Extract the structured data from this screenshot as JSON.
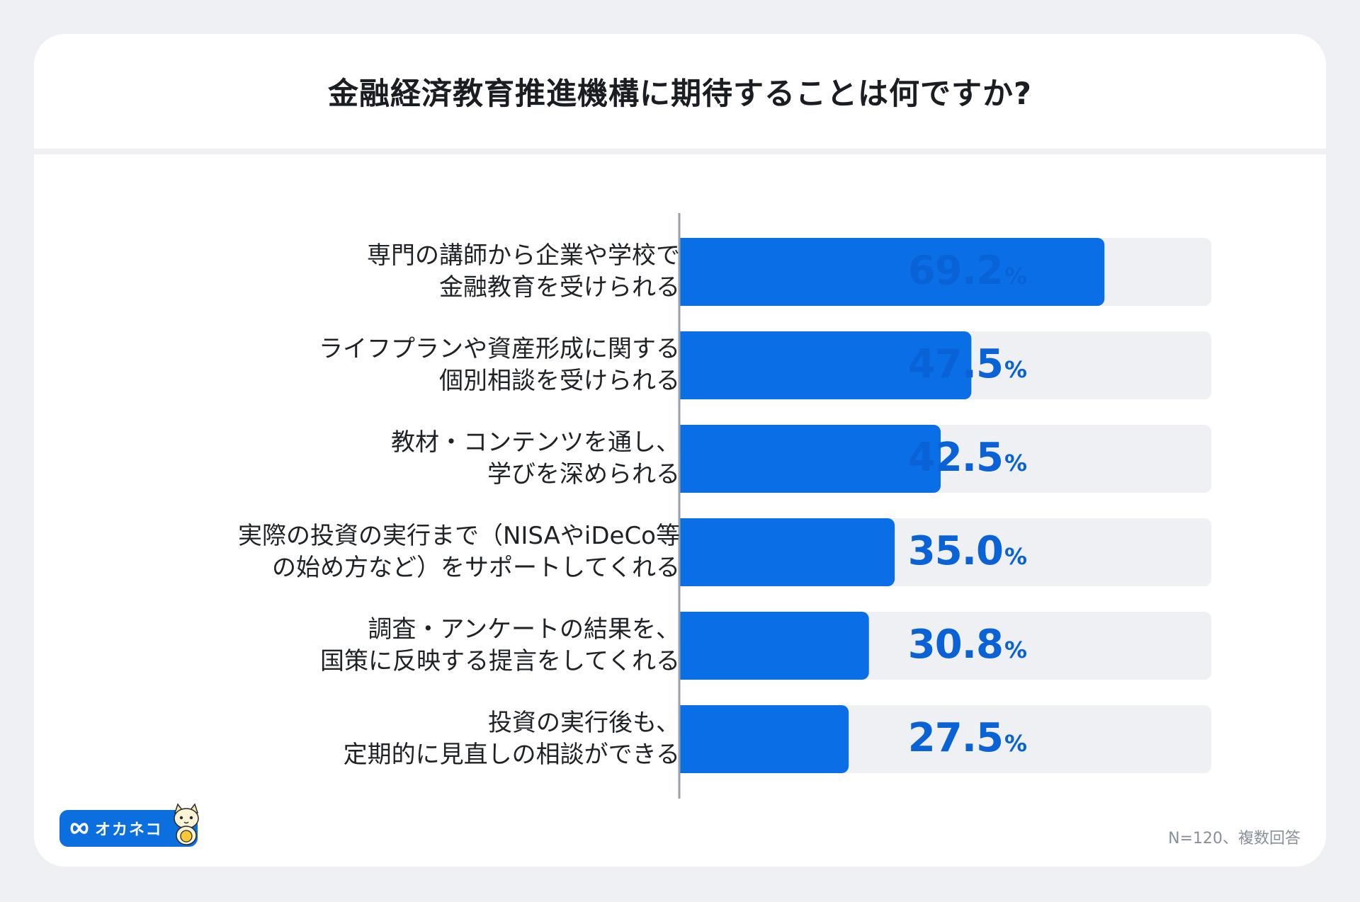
{
  "title": "金融経済教育推進機構に期待することは何ですか?",
  "note": "N=120、複数回答",
  "logo": {
    "text": "オカネコ",
    "icon": "infinity-icon",
    "mascot": "cat-mascot-icon"
  },
  "colors": {
    "bar": "#0a6fe6",
    "track": "#eef0f3",
    "value_text": "#0a63d6",
    "axis": "#9aa0a6"
  },
  "chart_data": {
    "type": "bar",
    "orientation": "horizontal",
    "title": "金融経済教育推進機構に期待することは何ですか?",
    "xlim": [
      0,
      100
    ],
    "unit": "%",
    "categories": [
      [
        "専門の講師から企業や学校で",
        "金融教育を受けられる"
      ],
      [
        "ライフプランや資産形成に関する",
        "個別相談を受けられる"
      ],
      [
        "教材・コンテンツを通し、",
        "学びを深められる"
      ],
      [
        "実際の投資の実行まで（NISAやiDeCo等",
        "の始め方など）をサポートしてくれる"
      ],
      [
        "調査・アンケートの結果を、",
        "国策に反映する提言をしてくれる"
      ],
      [
        "投資の実行後も、",
        "定期的に見直しの相談ができる"
      ]
    ],
    "values": [
      69.2,
      47.5,
      42.5,
      35.0,
      30.8,
      27.5
    ],
    "value_labels": [
      "69.2",
      "47.5",
      "42.5",
      "35.0",
      "30.8",
      "27.5"
    ]
  }
}
